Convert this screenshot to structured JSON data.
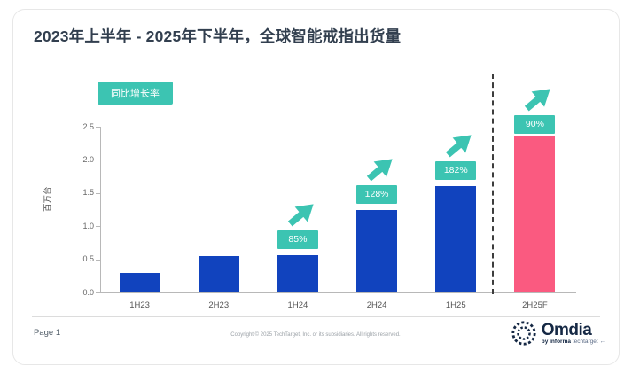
{
  "title": "2023年上半年 - 2025年下半年，全球智能戒指出货量",
  "chart_data": {
    "type": "bar",
    "title": "2023年上半年 - 2025年下半年，全球智能戒指出货量",
    "ylabel": "百万台",
    "ylim": [
      0,
      2.5
    ],
    "yticks": [
      0,
      0.5,
      1,
      1.5,
      2,
      2.5
    ],
    "categories": [
      "1H23",
      "2H23",
      "1H24",
      "2H24",
      "1H25",
      "2H25F"
    ],
    "values": [
      0.3,
      0.55,
      0.56,
      1.25,
      1.6,
      2.37
    ],
    "growth_labels": [
      null,
      null,
      "85%",
      "128%",
      "182%",
      "90%"
    ],
    "legend": "同比增长率",
    "legend_position": "top-left",
    "forecast_category": "2H25F",
    "forecast_divider": true,
    "grid": false,
    "colors": {
      "bar": "#1143BE",
      "forecast_bar": "#FA5A80",
      "growth_accent": "#3CC4B2"
    }
  },
  "footer": {
    "page": "Page 1",
    "copyright": "Copyright © 2025 TechTarget, Inc. or its subsidiaries. All rights reserved.",
    "logo_text": "Omdia",
    "logo_tagline_brand": "by informa",
    "logo_tagline_rest": "techtarget ←"
  }
}
